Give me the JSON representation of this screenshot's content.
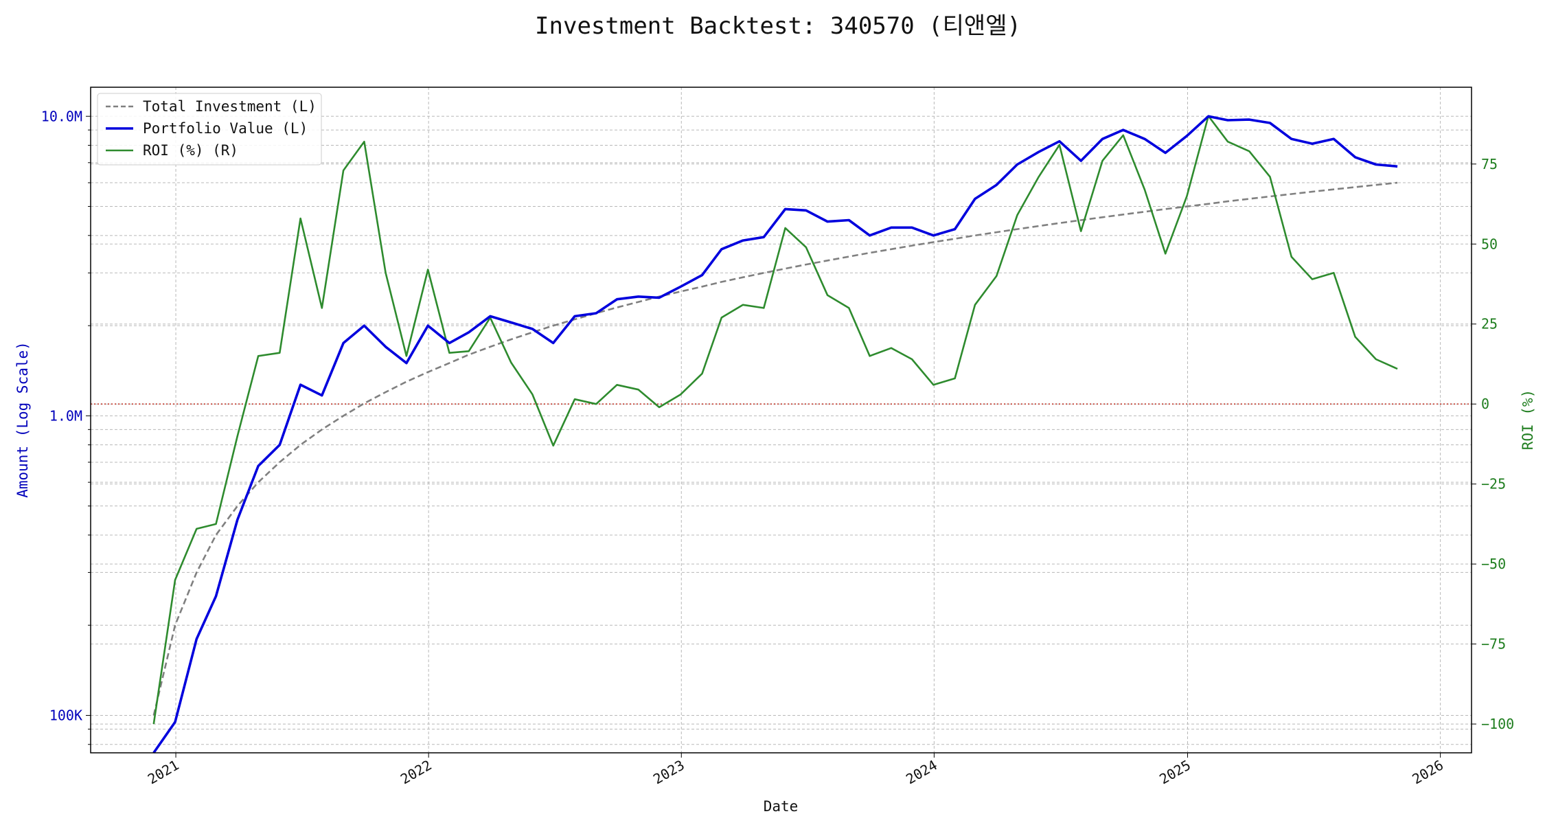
{
  "chart_data": {
    "type": "line",
    "title": "Investment Backtest: 340570 (티앤엘)",
    "xlabel": "Date",
    "ylabel_left": "Amount (Log Scale)",
    "ylabel_right": "ROI (%)",
    "x_ticks": [
      "2021",
      "2022",
      "2023",
      "2024",
      "2025",
      "2026"
    ],
    "y_left_ticks": [
      {
        "value": 100000,
        "label": "100K"
      },
      {
        "value": 1000000,
        "label": "1.0M"
      },
      {
        "value": 10000000,
        "label": "10.0M"
      }
    ],
    "y_right_ticks": [
      -100,
      -75,
      -50,
      -25,
      0,
      25,
      50,
      75
    ],
    "y_left_scale": "log",
    "y_left_lim": [
      75000,
      12500000
    ],
    "y_right_lim": [
      -109,
      99
    ],
    "x_lim": [
      "2020-08-31",
      "2026-02-15"
    ],
    "grid": true,
    "legend_position": "top-left",
    "reference_line": {
      "axis": "right",
      "value": 0,
      "color": "#c0392b",
      "style": "dotted"
    },
    "dates": [
      "2020-11-30",
      "2020-12-31",
      "2021-01-31",
      "2021-02-28",
      "2021-03-31",
      "2021-04-30",
      "2021-05-31",
      "2021-06-30",
      "2021-07-31",
      "2021-08-31",
      "2021-09-30",
      "2021-10-31",
      "2021-11-30",
      "2021-12-31",
      "2022-01-31",
      "2022-02-28",
      "2022-03-31",
      "2022-04-30",
      "2022-05-31",
      "2022-06-30",
      "2022-07-31",
      "2022-08-31",
      "2022-09-30",
      "2022-10-31",
      "2022-11-30",
      "2022-12-31",
      "2023-01-31",
      "2023-02-28",
      "2023-03-31",
      "2023-04-30",
      "2023-05-31",
      "2023-06-30",
      "2023-07-31",
      "2023-08-31",
      "2023-09-30",
      "2023-10-31",
      "2023-11-30",
      "2023-12-31",
      "2024-01-31",
      "2024-02-29",
      "2024-03-31",
      "2024-04-30",
      "2024-05-31",
      "2024-06-30",
      "2024-07-31",
      "2024-08-31",
      "2024-09-30",
      "2024-10-31",
      "2024-11-30",
      "2024-12-31",
      "2025-01-31",
      "2025-02-28",
      "2025-03-31",
      "2025-04-30",
      "2025-05-31",
      "2025-06-30",
      "2025-07-31",
      "2025-08-31",
      "2025-09-30",
      "2025-10-31"
    ],
    "series": [
      {
        "name": "Total Investment (L)",
        "axis": "left",
        "color": "#808080",
        "style": "dashed",
        "values": [
          100000,
          200000,
          300000,
          400000,
          500000,
          600000,
          700000,
          800000,
          900000,
          1000000,
          1100000,
          1200000,
          1300000,
          1400000,
          1500000,
          1600000,
          1700000,
          1800000,
          1900000,
          2000000,
          2100000,
          2200000,
          2300000,
          2400000,
          2500000,
          2600000,
          2700000,
          2800000,
          2900000,
          3000000,
          3100000,
          3200000,
          3300000,
          3400000,
          3500000,
          3600000,
          3700000,
          3800000,
          3900000,
          4000000,
          4100000,
          4200000,
          4300000,
          4400000,
          4500000,
          4600000,
          4700000,
          4800000,
          4900000,
          5000000,
          5100000,
          5200000,
          5300000,
          5400000,
          5500000,
          5600000,
          5700000,
          5800000,
          5900000,
          6000000
        ]
      },
      {
        "name": "Portfolio Value (L)",
        "axis": "left",
        "color": "#0000dd",
        "style": "solid",
        "values": [
          60000,
          95000,
          180000,
          250000,
          450000,
          680000,
          800000,
          1270000,
          1170000,
          1750000,
          2000000,
          1700000,
          1500000,
          2000000,
          1750000,
          1900000,
          2150000,
          2050000,
          1950000,
          1750000,
          2150000,
          2200000,
          2450000,
          2500000,
          2480000,
          2700000,
          2950000,
          3600000,
          3850000,
          3950000,
          4900000,
          4850000,
          4450000,
          4500000,
          4000000,
          4250000,
          4250000,
          4000000,
          4200000,
          5300000,
          5900000,
          6900000,
          7600000,
          8250000,
          7100000,
          8400000,
          9000000,
          8400000,
          7550000,
          8600000,
          10000000,
          9700000,
          9750000,
          9500000,
          8400000,
          8100000,
          8400000,
          7300000,
          6900000,
          6800000
        ]
      },
      {
        "name": "ROI (%) (R)",
        "axis": "right",
        "color": "#2e8b2e",
        "style": "solid",
        "values": [
          -100,
          -55,
          -39,
          -37.5,
          -10,
          15,
          16,
          58,
          30,
          73,
          82,
          41,
          15,
          42,
          16,
          16.5,
          27,
          13,
          3,
          -13,
          1.5,
          0,
          6,
          4.5,
          -1,
          3,
          9.5,
          27,
          31,
          30,
          55,
          49,
          34,
          30,
          15,
          17.5,
          14,
          6,
          8,
          31,
          40,
          59,
          71,
          81,
          54,
          76,
          84,
          67,
          47,
          65,
          90,
          82,
          79,
          71,
          46,
          39,
          41,
          21,
          14,
          11
        ]
      }
    ]
  }
}
